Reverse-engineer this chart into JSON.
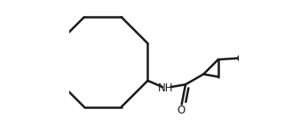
{
  "bg_color": "#ffffff",
  "line_color": "#1a1a1a",
  "line_width": 1.8,
  "fig_width": 3.47,
  "fig_height": 1.5,
  "dpi": 100
}
